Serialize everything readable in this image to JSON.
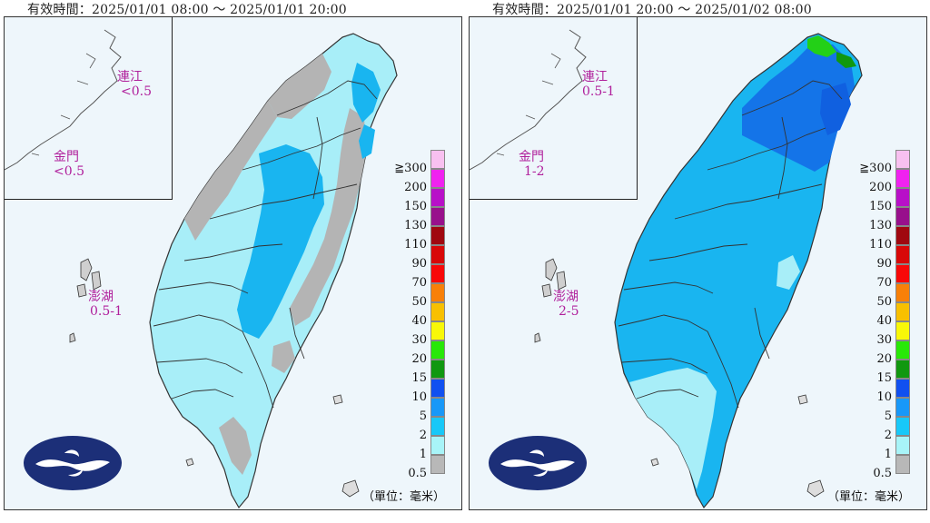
{
  "panels": [
    {
      "period_label": "有效時間：2025/01/01 08:00 ～ 2025/01/01 20:00",
      "islands": {
        "matsu": {
          "name": "連江",
          "value": "<0.5"
        },
        "kinmen": {
          "name": "金門",
          "value": "<0.5"
        },
        "penghu": {
          "name": "澎湖",
          "value": "0.5-1"
        }
      },
      "dominant_colors": [
        "#a8eef8",
        "#19b5f0",
        "#b4b4b4"
      ]
    },
    {
      "period_label": "有效時間：2025/01/01 20:00 ～ 2025/01/02 08:00",
      "islands": {
        "matsu": {
          "name": "連江",
          "value": "0.5-1"
        },
        "kinmen": {
          "name": "金門",
          "value": "1-2"
        },
        "penghu": {
          "name": "澎湖",
          "value": "2-5"
        }
      },
      "dominant_colors": [
        "#19b5f0",
        "#1474e8",
        "#a8eef8",
        "#23d017"
      ]
    }
  ],
  "legend": {
    "ticks": [
      "≧300",
      "200",
      "150",
      "130",
      "110",
      "90",
      "70",
      "50",
      "40",
      "30",
      "20",
      "15",
      "10",
      "5",
      "2",
      "1",
      "0.5"
    ],
    "colors": [
      "#f8c0f0",
      "#f022f0",
      "#b810c8",
      "#98108c",
      "#a00810",
      "#d80808",
      "#f80808",
      "#f88008",
      "#f8c000",
      "#f8f808",
      "#28e808",
      "#109810",
      "#1050f0",
      "#1898f8",
      "#18c8f8",
      "#a8f4f8",
      "#b8b8b8"
    ],
    "unit": "（單位：毫米）"
  },
  "logo": {
    "name": "cwa-logo"
  }
}
